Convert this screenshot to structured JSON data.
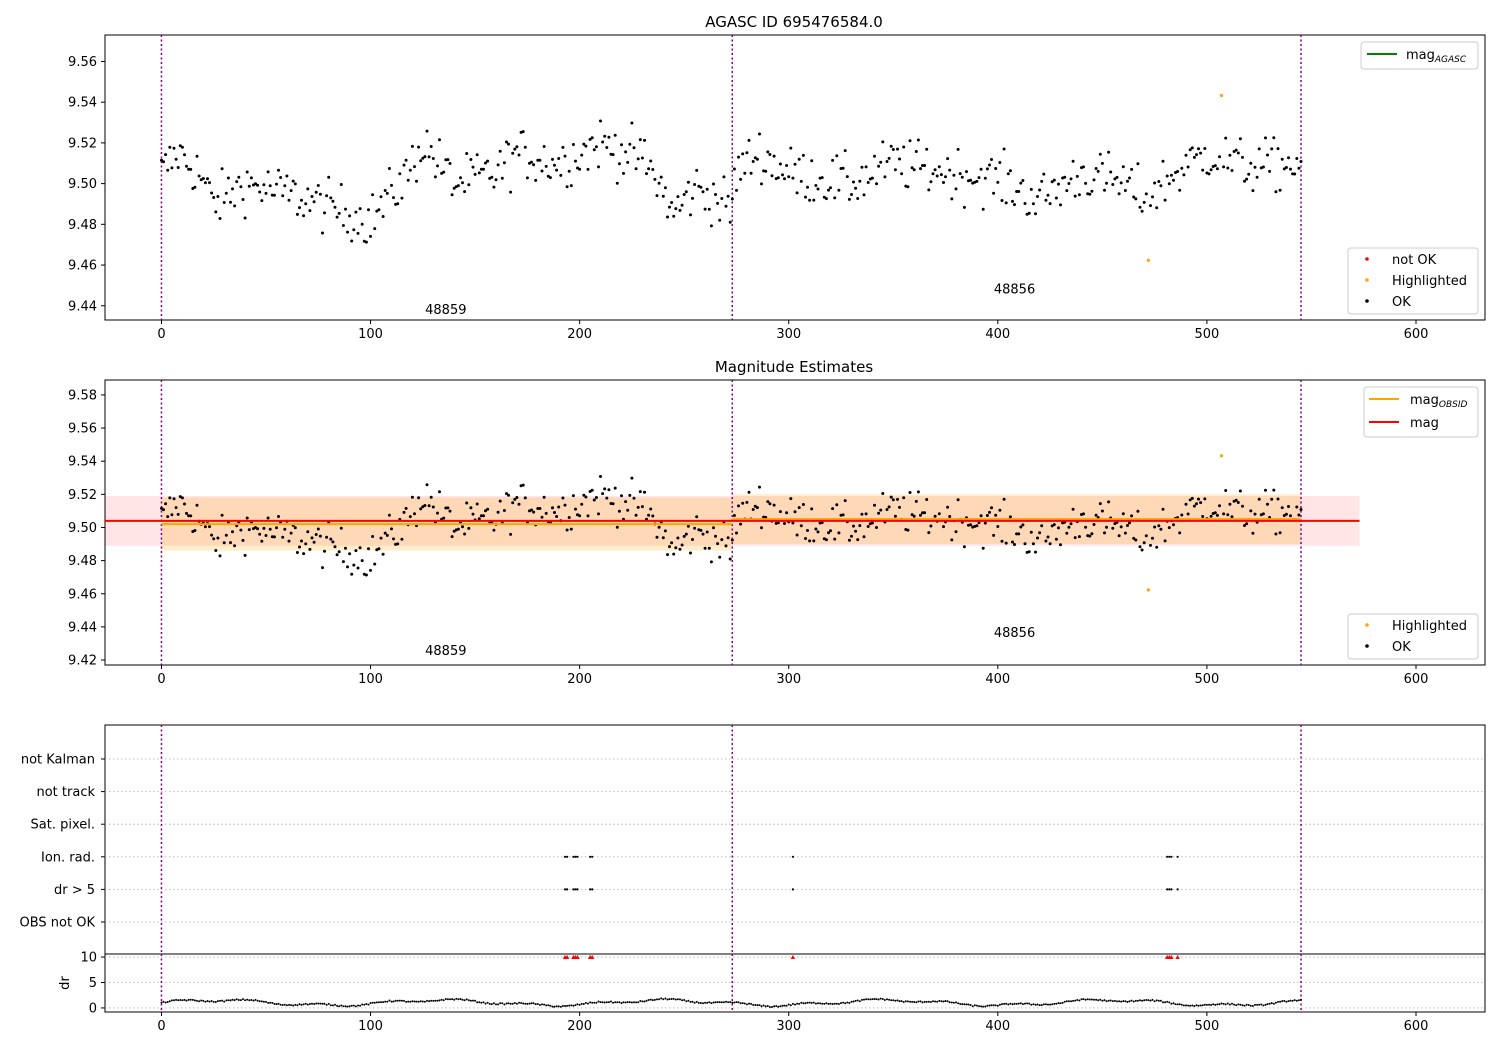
{
  "figure": {
    "title": "AGASC ID 695476584.0"
  },
  "chart_data": [
    {
      "type": "scatter",
      "name": "magnitude-vs-sample",
      "title": "",
      "xlabel": "",
      "ylabel": "",
      "xlim": [
        -27,
        633
      ],
      "ylim": [
        9.433,
        9.573
      ],
      "x_ticks": [
        "0",
        "100",
        "200",
        "300",
        "400",
        "500",
        "600"
      ],
      "y_ticks": [
        "9.44",
        "9.46",
        "9.48",
        "9.50",
        "9.52",
        "9.54",
        "9.56"
      ],
      "grid": false,
      "legend_top": {
        "placement": "top-right",
        "entries": [
          {
            "label": "mag",
            "sub": "AGASC",
            "color": "#008000"
          }
        ]
      },
      "legend_bottom": {
        "placement": "bottom-right",
        "entries": [
          {
            "label": "not OK",
            "color": "#ff0000"
          },
          {
            "label": "Highlighted",
            "color": "#ffa500"
          },
          {
            "label": "OK",
            "color": "#000000"
          }
        ]
      },
      "obs_boundaries": [
        0,
        273,
        545
      ],
      "obsids": [
        {
          "label": "48859",
          "x": 136,
          "y": 9.436
        },
        {
          "label": "48856",
          "x": 408,
          "y": 9.446
        }
      ],
      "highlighted": [
        {
          "x": 472,
          "y": 9.4623
        },
        {
          "x": 507,
          "y": 9.5433
        }
      ]
    },
    {
      "type": "scatter",
      "name": "magnitude-estimates",
      "title": "Magnitude Estimates",
      "xlabel": "",
      "ylabel": "",
      "xlim": [
        -27,
        633
      ],
      "ylim": [
        9.417,
        9.589
      ],
      "x_ticks": [
        "0",
        "100",
        "200",
        "300",
        "400",
        "500",
        "600"
      ],
      "y_ticks": [
        "9.42",
        "9.44",
        "9.46",
        "9.48",
        "9.50",
        "9.52",
        "9.54",
        "9.56",
        "9.58"
      ],
      "grid": false,
      "legend_top": {
        "placement": "top-right",
        "entries": [
          {
            "label": "mag",
            "sub": "OBSID",
            "color": "#ffa500"
          },
          {
            "label": "mag",
            "sub": "",
            "color": "#ff0000"
          }
        ]
      },
      "legend_bottom": {
        "placement": "bottom-right",
        "entries": [
          {
            "label": "Highlighted",
            "color": "#ffa500"
          },
          {
            "label": "OK",
            "color": "#000000"
          }
        ]
      },
      "mag": {
        "value": 9.504,
        "x_range": [
          -27,
          573
        ],
        "band": [
          9.489,
          9.519
        ]
      },
      "mag_obsid": [
        {
          "x_range": [
            0,
            273
          ],
          "value": 9.502,
          "band": [
            9.486,
            9.518
          ]
        },
        {
          "x_range": [
            273,
            545
          ],
          "value": 9.505,
          "band": [
            9.49,
            9.52
          ]
        }
      ],
      "obs_boundaries": [
        0,
        273,
        545
      ],
      "obsids": [
        {
          "label": "48859",
          "x": 136,
          "y": 9.423
        },
        {
          "label": "48856",
          "x": 408,
          "y": 9.434
        }
      ],
      "highlighted": [
        {
          "x": 472,
          "y": 9.4623
        },
        {
          "x": 507,
          "y": 9.5433
        }
      ]
    },
    {
      "type": "scatter",
      "name": "flags",
      "title": "",
      "xlim": [
        -27,
        633
      ],
      "categories": [
        "not Kalman",
        "not track",
        "Sat. pixel.",
        "Ion. rad.",
        "dr > 5",
        "OBS not OK"
      ],
      "grid": true,
      "flag_points": {
        "Ion. rad.": [
          193,
          194,
          197,
          198,
          199,
          205,
          206,
          302,
          481,
          482,
          483,
          486
        ],
        "dr > 5": [
          193,
          194,
          197,
          198,
          199,
          205,
          206,
          302,
          481,
          482,
          483,
          486
        ]
      },
      "obs_boundaries": [
        0,
        273,
        545
      ]
    },
    {
      "type": "scatter",
      "name": "dr",
      "title": "",
      "xlabel": "",
      "ylabel": "dr",
      "xlim": [
        -27,
        633
      ],
      "ylim": [
        -0.8,
        10.6
      ],
      "x_ticks": [
        "0",
        "100",
        "200",
        "300",
        "400",
        "500",
        "600"
      ],
      "y_ticks": [
        "0",
        "5",
        "10"
      ],
      "grid": true,
      "clipped_points_x": [
        193,
        194,
        197,
        198,
        199,
        205,
        206,
        302,
        481,
        482,
        483,
        486
      ],
      "clip_value": 10,
      "obs_boundaries": [
        0,
        273,
        545
      ]
    }
  ],
  "colors": {
    "ok": "#000000",
    "highlighted": "#ffa500",
    "not_ok": "#ff0000",
    "mag": "#ff0000",
    "mag_obsid": "#ffa500",
    "mag_agasc": "#008000",
    "boundary": "#800080"
  }
}
